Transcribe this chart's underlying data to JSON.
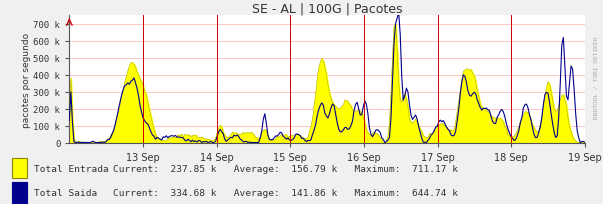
{
  "title": "SE - AL | 100G | Pacotes",
  "ylabel": "pacotes por segundo",
  "bg_color": "#f0f0f0",
  "plot_bg_color": "#ffffff",
  "grid_color": "#ffbbbb",
  "axis_color": "#555555",
  "ylim": [
    0,
    750000
  ],
  "yticks": [
    0,
    100000,
    200000,
    300000,
    400000,
    500000,
    600000,
    700000
  ],
  "ytick_labels": [
    "0",
    "100 k",
    "200 k",
    "300 k",
    "400 k",
    "500 k",
    "600 k",
    "700 k"
  ],
  "xtick_labels": [
    "13 Sep",
    "14 Sep",
    "15 Sep",
    "16 Sep",
    "17 Sep",
    "18 Sep",
    "19 Sep"
  ],
  "fill_color": "#ffff00",
  "fill_edge_color": "#999900",
  "line_color": "#00008b",
  "legend_entry1": "Total Entrada",
  "legend_entry2": "Total Saida",
  "legend_cur1": "237.85 k",
  "legend_avg1": "156.79 k",
  "legend_max1": "711.17 k",
  "legend_cur2": "334.68 k",
  "legend_avg2": "141.86 k",
  "legend_max2": "644.74 k",
  "watermark": "RRDTOOL / TOBI OETIKER",
  "n_points": 336,
  "figwidth": 6.03,
  "figheight": 2.05,
  "dpi": 100
}
